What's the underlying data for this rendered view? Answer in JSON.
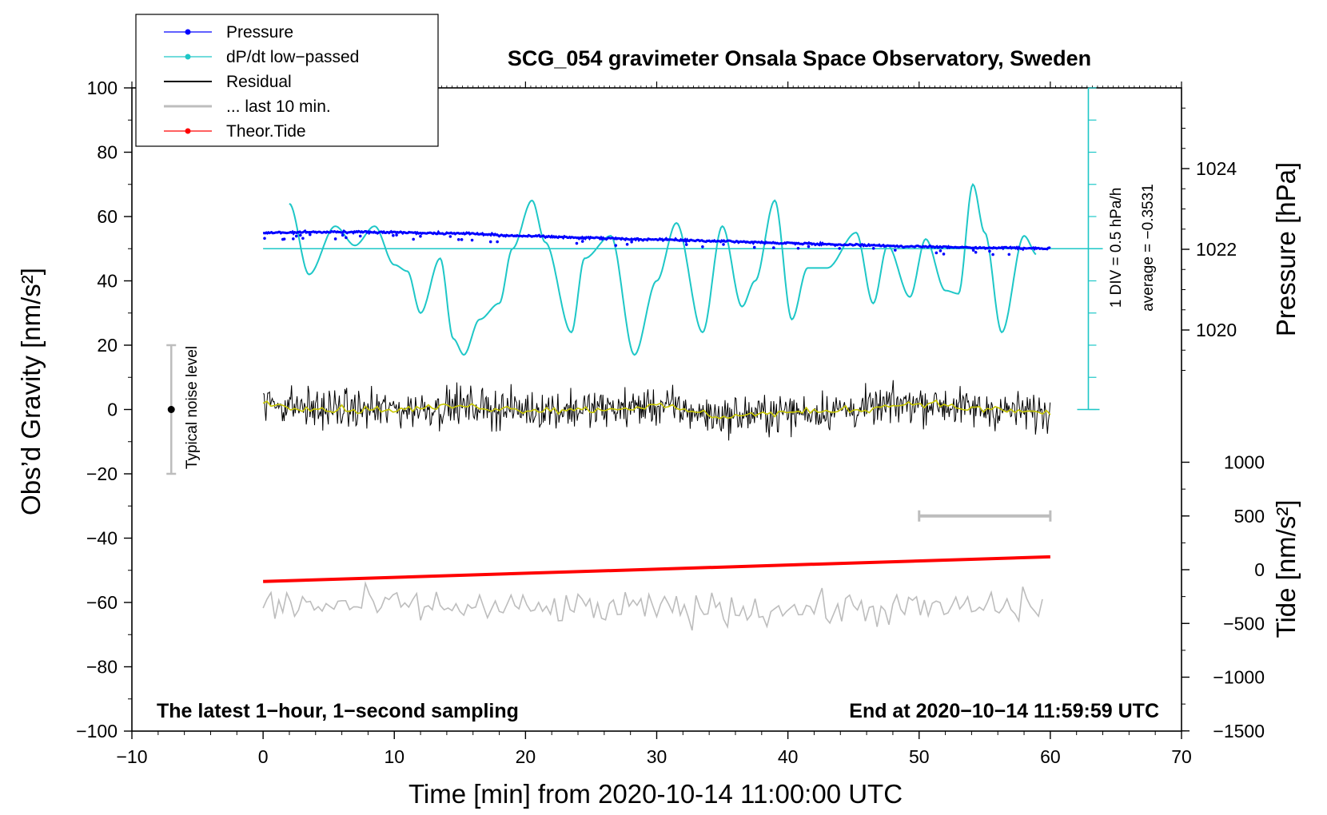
{
  "chart_data": {
    "type": "line",
    "title": "SCG_054 gravimeter Onsala Space Observatory, Sweden",
    "xlabel": "Time [min] from 2020-10-14 11:00:00 UTC",
    "ylabel_left": "Obs’d Gravity [nm/s²]",
    "ylabel_right_pressure": "Pressure [hPa]",
    "ylabel_right_tide": "Tide [nm/s²]",
    "xlim": [
      -10,
      70
    ],
    "ylim": [
      -100,
      100
    ],
    "pressure_axis": {
      "range_hpa": [
        1018,
        1026
      ],
      "ticks": [
        1020,
        1022,
        1024
      ]
    },
    "tide_axis": {
      "range_nm_s2": [
        -1500,
        1500
      ],
      "ticks": [
        -1500,
        -1000,
        -500,
        0,
        500,
        1000
      ]
    },
    "x_ticks": [
      "−10",
      "0",
      "10",
      "20",
      "30",
      "40",
      "50",
      "60",
      "70"
    ],
    "y_ticks": [
      "−100",
      "−80",
      "−60",
      "−40",
      "−20",
      "0",
      "20",
      "40",
      "60",
      "80",
      "100"
    ],
    "pressure_ticks": [
      "1020",
      "1022",
      "1024"
    ],
    "tide_ticks": [
      "−1500",
      "−1000",
      "−500",
      "0",
      "500",
      "1000"
    ],
    "legend": {
      "position": "top-left",
      "entries": [
        "Pressure",
        "dP/dt low−passed",
        "Residual",
        "... last 10 min.",
        "Theor.Tide"
      ]
    },
    "annotations": {
      "bottom_left": "The latest 1−hour, 1−second sampling",
      "bottom_right": "End at 2020−10−14 11:59:59 UTC",
      "noise_label": "Typical noise level",
      "dpdt_scale": "1 DIV = 0.5 hPa/h",
      "dpdt_average": "average = −0.3531"
    },
    "noise_bar": {
      "x": -7,
      "y_low": -20,
      "y_high": 20,
      "center": 0
    },
    "scale_bar_last10min": {
      "x_start": 50,
      "x_end": 60,
      "tide_level": 500
    },
    "series": [
      {
        "name": "Pressure",
        "unit": "hPa",
        "x": [
          0,
          5,
          10,
          15,
          20,
          25,
          30,
          35,
          40,
          45,
          50,
          55,
          60
        ],
        "values": [
          1022.41,
          1022.43,
          1022.42,
          1022.39,
          1022.33,
          1022.28,
          1022.24,
          1022.2,
          1022.15,
          1022.11,
          1022.07,
          1022.04,
          1022.02
        ]
      },
      {
        "name": "dP/dt low−passed",
        "unit": "nm/s² display",
        "x": [
          2,
          3.5,
          5.5,
          7,
          8.5,
          10,
          11,
          12,
          13.5,
          14.5,
          15.3,
          16.5,
          18,
          19,
          20.5,
          21.5,
          23.5,
          24.5,
          26.5,
          28.3,
          30,
          31.5,
          33.5,
          35,
          36.5,
          37.5,
          39,
          40.3,
          41.5,
          43,
          45.2,
          46.5,
          47.6,
          49.3,
          50.5,
          52,
          53,
          54.1,
          55,
          56.3,
          58,
          59
        ],
        "values": [
          64,
          42,
          57,
          51,
          57,
          45,
          43,
          30,
          47,
          22,
          17,
          28,
          33,
          50,
          65,
          52,
          24,
          47,
          54,
          17,
          40,
          58,
          24,
          57,
          32,
          40,
          65,
          28,
          44,
          44,
          55,
          33,
          51,
          35,
          53,
          37,
          36,
          70,
          55,
          24,
          54,
          48
        ]
      },
      {
        "name": "Residual",
        "unit": "nm/s²",
        "x": [
          0,
          5,
          10,
          15,
          20,
          25,
          30,
          35,
          40,
          45,
          50,
          55,
          60
        ],
        "values": [
          2,
          0,
          0,
          1,
          0,
          0,
          1,
          -2,
          -1,
          0,
          2,
          0,
          -1
        ]
      },
      {
        "name": "... last 10 min.",
        "unit": "nm/s² display",
        "x": [
          0,
          10,
          20,
          30,
          40,
          50,
          60
        ],
        "values": [
          -61,
          -61,
          -62,
          -62,
          -62,
          -62,
          -61
        ]
      },
      {
        "name": "Theor.Tide",
        "unit": "nm/s²",
        "x": [
          0,
          60
        ],
        "values": [
          -110,
          120
        ]
      }
    ]
  }
}
